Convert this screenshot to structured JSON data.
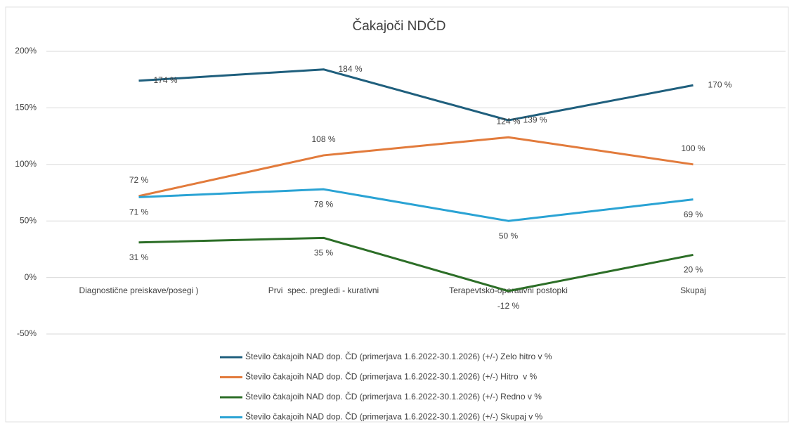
{
  "chart_data": {
    "type": "line",
    "title": "Čakajoči NDČD",
    "categories": [
      "Diagnostične preiskave/posegi )",
      "Prvi  spec. pregledi - kurativni",
      "Terapevtsko-operativni postopki",
      "Skupaj"
    ],
    "series": [
      {
        "name": "Število čakajoih NAD dop. ČD (primerjava 1.6.2022-30.1.2026) (+/-) Zelo hitro v %",
        "color": "#1f5f7d",
        "values": [
          174,
          184,
          139,
          170
        ],
        "value_labels": [
          "174 %",
          "184 %",
          "139 %",
          "170 %"
        ]
      },
      {
        "name": "Število čakajoih NAD dop. ČD (primerjava 1.6.2022-30.1.2026) (+/-) Hitro  v %",
        "color": "#e27b3c",
        "values": [
          72,
          108,
          124,
          100
        ],
        "value_labels": [
          "72 %",
          "108 %",
          "124 %",
          "100 %"
        ]
      },
      {
        "name": "Število čakajoih NAD dop. ČD (primerjava 1.6.2022-30.1.2026) (+/-) Redno v %",
        "color": "#2c6e27",
        "values": [
          31,
          35,
          -12,
          20
        ],
        "value_labels": [
          "31 %",
          "35 %",
          "-12 %",
          "20 %"
        ]
      },
      {
        "name": "Število čakajoih NAD dop. ČD (primerjava 1.6.2022-30.1.2026) (+/-) Skupaj v %",
        "color": "#2aa3d4",
        "values": [
          71,
          78,
          50,
          69
        ],
        "value_labels": [
          "71 %",
          "78 %",
          "50 %",
          "69 %"
        ]
      }
    ],
    "ylim": [
      -50,
      200
    ],
    "yticks": [
      {
        "value": -50,
        "label": "-50%"
      },
      {
        "value": 0,
        "label": "0%"
      },
      {
        "value": 50,
        "label": "50%"
      },
      {
        "value": 100,
        "label": "100%"
      },
      {
        "value": 150,
        "label": "150%"
      },
      {
        "value": 200,
        "label": "200%"
      }
    ],
    "grid": true,
    "legend": "bottom"
  }
}
